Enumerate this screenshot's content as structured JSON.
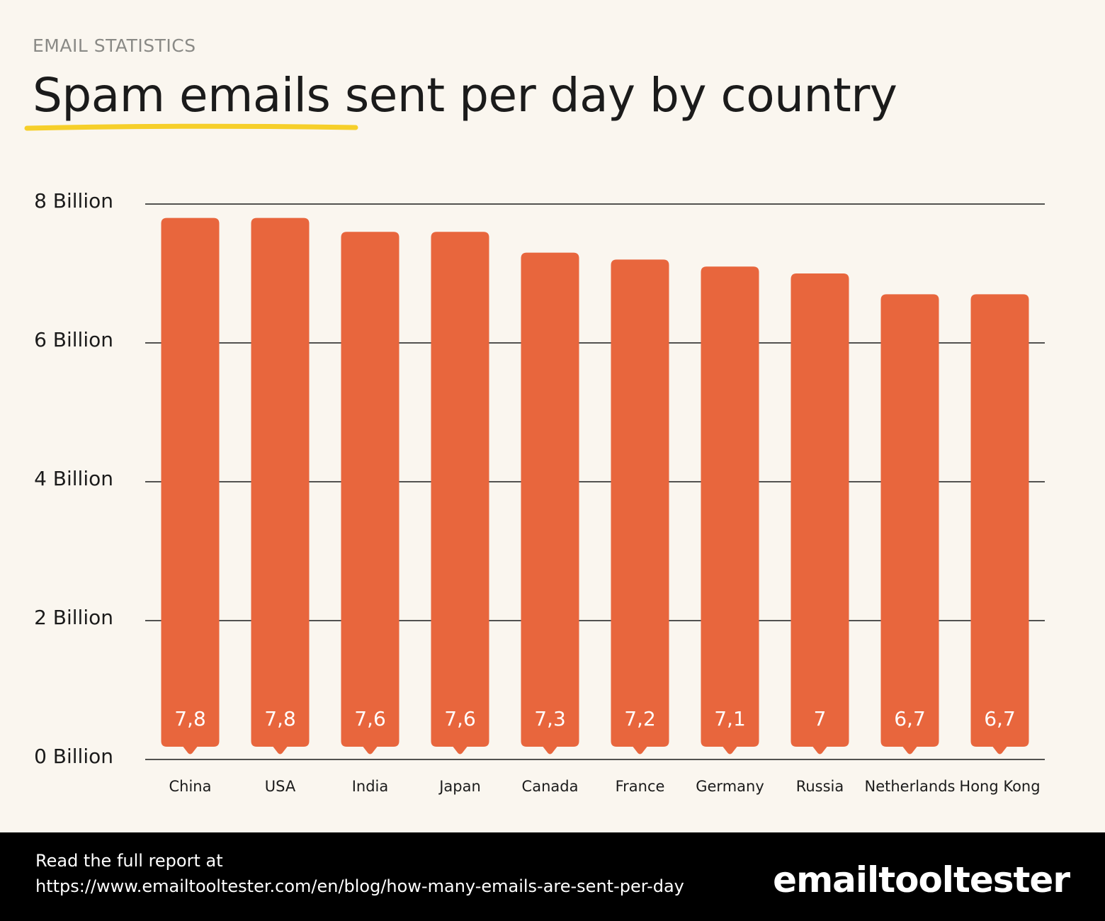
{
  "header": {
    "kicker": "EMAIL STATISTICS",
    "title": "Spam emails sent per day by country",
    "title_highlight": "Spam emails",
    "title_rest": " sent per day by country",
    "highlight_color": "#f6cf2a"
  },
  "chart_data": {
    "type": "bar",
    "categories": [
      "China",
      "USA",
      "India",
      "Japan",
      "Canada",
      "France",
      "Germany",
      "Russia",
      "Netherlands",
      "Hong Kong"
    ],
    "values": [
      7.8,
      7.8,
      7.6,
      7.6,
      7.3,
      7.2,
      7.1,
      7,
      6.7,
      6.7
    ],
    "value_labels": [
      "7,8",
      "7,8",
      "7,6",
      "7,6",
      "7,3",
      "7,2",
      "7,1",
      "7",
      "6,7",
      "6,7"
    ],
    "ylim": [
      0,
      8
    ],
    "yticks": [
      0,
      2,
      4,
      6,
      8
    ],
    "ytick_labels": [
      "0 Billion",
      "2 Billion",
      "4 Billion",
      "6 Billion",
      "8 Billion"
    ],
    "grid": true,
    "bar_color": "#e8663d",
    "label_color": "#ffffff"
  },
  "footer": {
    "line1": "Read the full report at",
    "line2": "https://www.emailtooltester.com/en/blog/how-many-emails-are-sent-per-day",
    "logo": "emailtooltester"
  }
}
